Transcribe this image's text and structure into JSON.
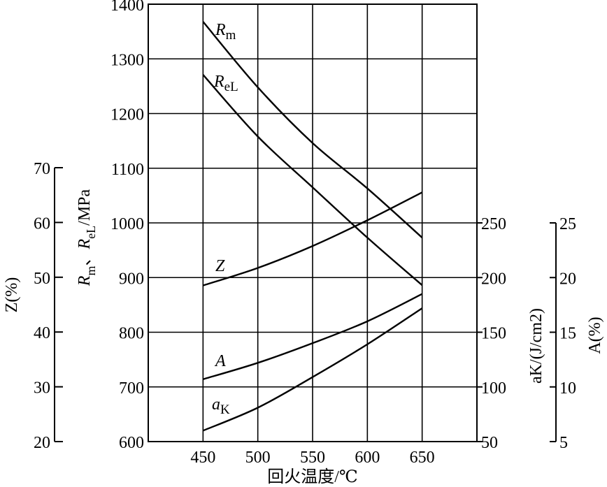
{
  "chart_data": {
    "type": "line",
    "xlabel": "回火温度/℃",
    "x_ticks": [
      "450",
      "500",
      "550",
      "600",
      "650"
    ],
    "xlim": [
      400,
      700
    ],
    "x": [
      450,
      500,
      550,
      600,
      650
    ],
    "axes": {
      "strength": {
        "label": "Rm、ReL/MPa",
        "label_parts": [
          "R",
          "m",
          "、",
          "R",
          "eL",
          "/MPa"
        ],
        "ylim": [
          600,
          1400
        ],
        "ticks": [
          "600",
          "700",
          "800",
          "900",
          "1000",
          "1100",
          "1200",
          "1300",
          "1400"
        ]
      },
      "Z": {
        "label": "Z(%)",
        "label_parts": [
          "Z",
          "(%)"
        ],
        "ylim": [
          20,
          70
        ],
        "ticks": [
          "20",
          "30",
          "40",
          "50",
          "60",
          "70"
        ]
      },
      "aK": {
        "label": "aK/(J/cm2)",
        "label_parts": [
          "a",
          "K",
          "/(J/cm",
          "2",
          ")"
        ],
        "ylim": [
          50,
          250
        ],
        "ticks": [
          "50",
          "100",
          "150",
          "200",
          "250"
        ]
      },
      "A": {
        "label": "A(%)",
        "label_parts": [
          "A",
          "(%)"
        ],
        "ylim": [
          5,
          25
        ],
        "ticks": [
          "5",
          "10",
          "15",
          "20",
          "25"
        ]
      }
    },
    "series": [
      {
        "name": "Rm",
        "label_main": "R",
        "label_sub": "m",
        "axis": "strength",
        "values": [
          1368,
          1248,
          1146,
          1063,
          973
        ]
      },
      {
        "name": "ReL",
        "label_main": "R",
        "label_sub": "eL",
        "axis": "strength",
        "values": [
          1271,
          1158,
          1065,
          973,
          886
        ]
      },
      {
        "name": "Z",
        "label_main": "Z",
        "label_sub": "",
        "axis": "Z",
        "values": [
          48.5,
          51.7,
          55.7,
          60.4,
          65.5
        ]
      },
      {
        "name": "A",
        "label_main": "A",
        "label_sub": "",
        "axis": "A",
        "values": [
          10.7,
          12.2,
          14.0,
          16.0,
          18.5
        ]
      },
      {
        "name": "aK",
        "label_main": "a",
        "label_sub": "K",
        "axis": "aK",
        "values": [
          60,
          81,
          109,
          139,
          172
        ]
      }
    ],
    "grid": true,
    "legend": "inline labels"
  }
}
